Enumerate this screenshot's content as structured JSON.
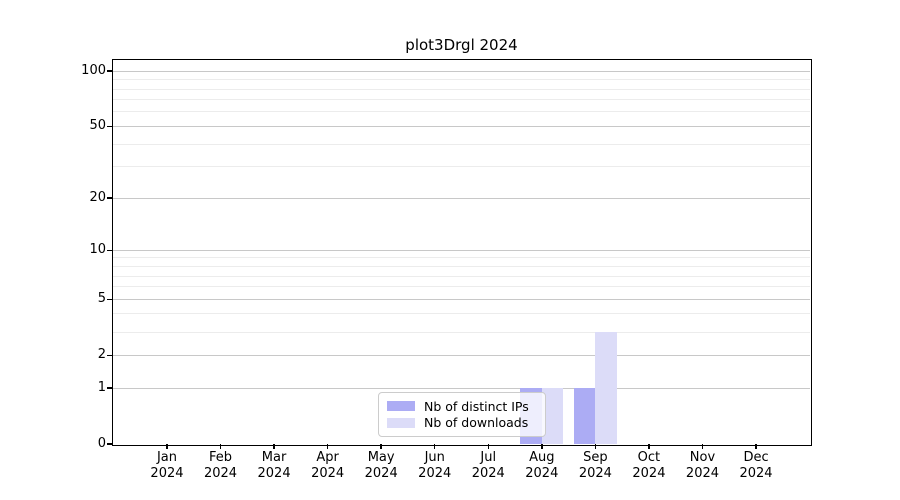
{
  "chart_data": {
    "type": "bar",
    "title": "plot3Drgl 2024",
    "year": "2024",
    "categories": [
      "Jan",
      "Feb",
      "Mar",
      "Apr",
      "May",
      "Jun",
      "Jul",
      "Aug",
      "Sep",
      "Oct",
      "Nov",
      "Dec"
    ],
    "series": [
      {
        "name": "Nb of distinct IPs",
        "color": "#acacf4",
        "values": [
          0,
          0,
          0,
          0,
          0,
          0,
          0,
          1,
          1,
          0,
          0,
          0
        ]
      },
      {
        "name": "Nb of downloads",
        "color": "#dcdcf8",
        "values": [
          0,
          0,
          0,
          0,
          0,
          0,
          0,
          1,
          3,
          0,
          0,
          0
        ]
      }
    ],
    "yscale": "log1p",
    "ylim": [
      0,
      115
    ],
    "ytick_values": [
      0,
      1,
      2,
      5,
      10,
      20,
      50,
      100
    ],
    "major_gridline_values": [
      1,
      2,
      5,
      10,
      20,
      50,
      100
    ],
    "minor_gridline_values": [
      3,
      4,
      6,
      7,
      8,
      9,
      30,
      40,
      60,
      70,
      80,
      90
    ],
    "grid": "on",
    "legend_position": "lower center",
    "colors": {
      "axis": "#000000",
      "major_grid": "#c8c8c8",
      "minor_grid": "#ececec",
      "legend_border": "#cccccc"
    }
  }
}
